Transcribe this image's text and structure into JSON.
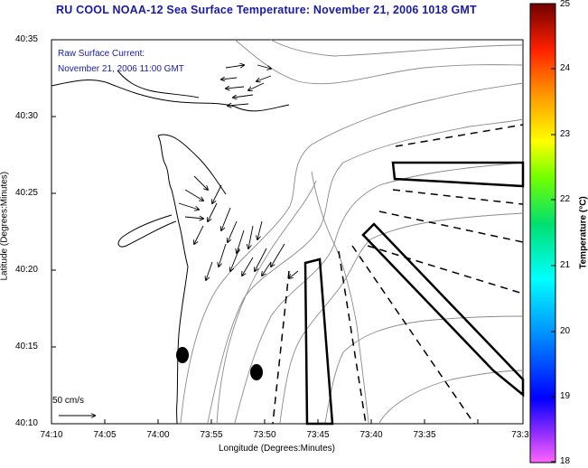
{
  "title": "RU COOL  NOAA-12  Sea Surface Temperature:  November 21, 2006 1018 GMT",
  "current_label": {
    "line1": "Raw Surface Current:",
    "line2": "November 21, 2006 11:00 GMT"
  },
  "axes": {
    "xlabel": "Longitude (Degrees:Minutes)",
    "ylabel": "Latitude (Degrees:Minutes)",
    "xticks": [
      "74:10",
      "74:05",
      "74:00",
      "73:55",
      "73:50",
      "73:45",
      "73:40",
      "73:35",
      "73:3"
    ],
    "yticks": [
      "40:35",
      "40:30",
      "40:25",
      "40:20",
      "40:15",
      "40:10"
    ]
  },
  "colorbar": {
    "label": "Temperature (°C)",
    "ticks": [
      "25",
      "24",
      "23",
      "22",
      "21",
      "20",
      "19",
      "18"
    ],
    "min": 18,
    "max": 25
  },
  "scale_vector": "50 cm/s",
  "colors": {
    "title": "#1a1aa8",
    "land_outline": "#000000",
    "bathymetry": "#8a8a8a"
  }
}
